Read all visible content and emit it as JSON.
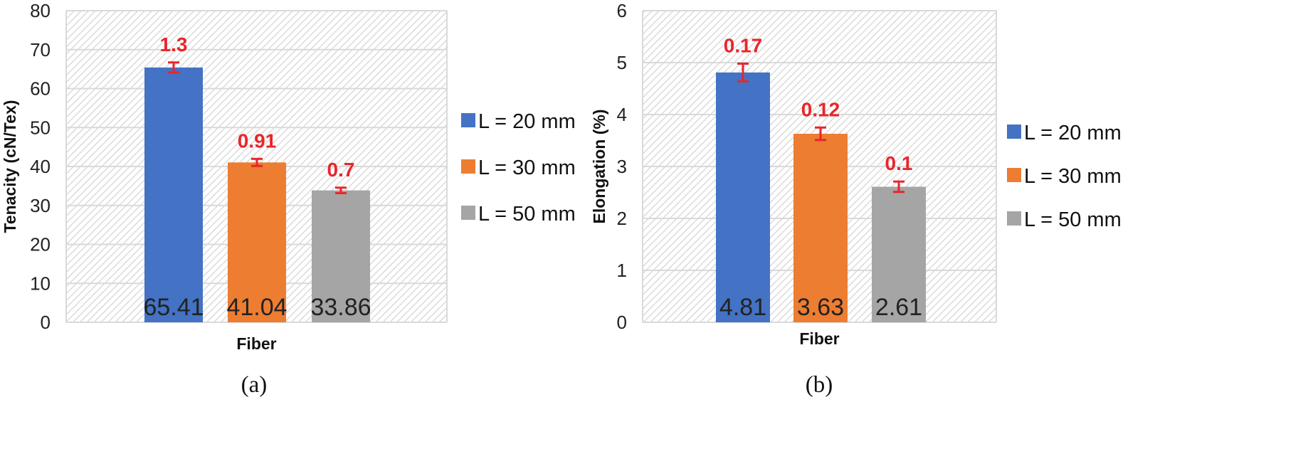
{
  "chart_data": [
    {
      "type": "bar",
      "caption": "(a)",
      "xlabel": "Fiber",
      "ylabel": "Tenacity (cN/Tex)",
      "ylim": [
        0,
        80
      ],
      "yticks": [
        0,
        10,
        20,
        30,
        40,
        50,
        60,
        70,
        80
      ],
      "grid": true,
      "legend_position": "right",
      "series": [
        {
          "name": "L = 20 mm",
          "value": 65.41,
          "value_label": "65.41",
          "error": 1.3,
          "error_label": "1.3",
          "color": "#4472c4"
        },
        {
          "name": "L = 30 mm",
          "value": 41.04,
          "value_label": "41.04",
          "error": 0.91,
          "error_label": "0.91",
          "color": "#ed7d31"
        },
        {
          "name": "L = 50 mm",
          "value": 33.86,
          "value_label": "33.86",
          "error": 0.7,
          "error_label": "0.7",
          "color": "#a5a5a5"
        }
      ]
    },
    {
      "type": "bar",
      "caption": "(b)",
      "xlabel": "Fiber",
      "ylabel": "Elongation (%)",
      "ylim": [
        0,
        6
      ],
      "yticks": [
        0,
        1,
        2,
        3,
        4,
        5,
        6
      ],
      "grid": true,
      "legend_position": "right",
      "series": [
        {
          "name": "L = 20 mm",
          "value": 4.81,
          "value_label": "4.81",
          "error": 0.17,
          "error_label": "0.17",
          "color": "#4472c4"
        },
        {
          "name": "L = 30 mm",
          "value": 3.63,
          "value_label": "3.63",
          "error": 0.12,
          "error_label": "0.12",
          "color": "#ed7d31"
        },
        {
          "name": "L = 50 mm",
          "value": 2.61,
          "value_label": "2.61",
          "error": 0.1,
          "error_label": "0.1",
          "color": "#a5a5a5"
        }
      ],
      "error_color": "#e8262b"
    }
  ]
}
